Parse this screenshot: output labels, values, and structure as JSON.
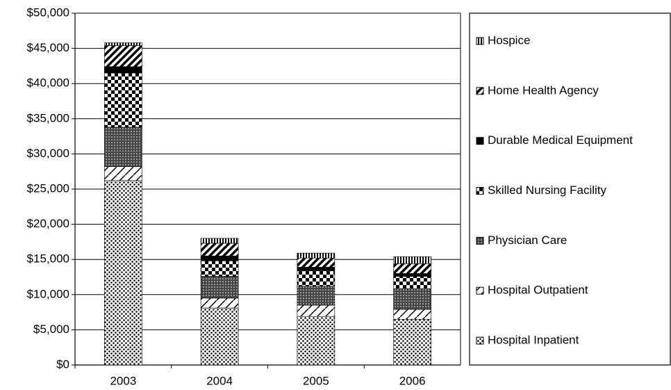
{
  "chart_data": {
    "type": "stacked_bar",
    "categories": [
      "2003",
      "2004",
      "2005",
      "2006"
    ],
    "series": [
      {
        "name": "Hospital Inpatient",
        "color": "#000000",
        "pattern": "dots",
        "values": [
          26200,
          8100,
          6900,
          6500
        ]
      },
      {
        "name": "Hospital Outpatient",
        "color": "#000000",
        "pattern": "light-diagonal",
        "values": [
          2000,
          1400,
          1600,
          1400
        ]
      },
      {
        "name": "Physician Care",
        "color": "#000000",
        "pattern": "dense-dots",
        "values": [
          5600,
          3100,
          2700,
          2900
        ]
      },
      {
        "name": "Skilled Nursing Facility",
        "color": "#000000",
        "pattern": "checker",
        "values": [
          7700,
          2200,
          2200,
          1800
        ]
      },
      {
        "name": "Durable Medical Equipment",
        "color": "#000000",
        "pattern": "solid",
        "values": [
          900,
          700,
          500,
          400
        ]
      },
      {
        "name": "Home Health Agency",
        "color": "#000000",
        "pattern": "wide-diagonal",
        "values": [
          3000,
          1800,
          1300,
          1400
        ]
      },
      {
        "name": "Hospice",
        "color": "#000000",
        "pattern": "vertical",
        "values": [
          400,
          700,
          700,
          1000
        ]
      }
    ],
    "ylim": [
      0,
      50000
    ],
    "yticks": [
      {
        "value": 0,
        "label": "$0"
      },
      {
        "value": 5000,
        "label": "$5,000"
      },
      {
        "value": 10000,
        "label": "$10,000"
      },
      {
        "value": 15000,
        "label": "$15,000"
      },
      {
        "value": 20000,
        "label": "$20,000"
      },
      {
        "value": 25000,
        "label": "$25,000"
      },
      {
        "value": 30000,
        "label": "$30,000"
      },
      {
        "value": 35000,
        "label": "$35,000"
      },
      {
        "value": 40000,
        "label": "$40,000"
      },
      {
        "value": 45000,
        "label": "$45,000"
      },
      {
        "value": 50000,
        "label": "$50,000"
      }
    ],
    "grid": true,
    "legend": "right"
  }
}
